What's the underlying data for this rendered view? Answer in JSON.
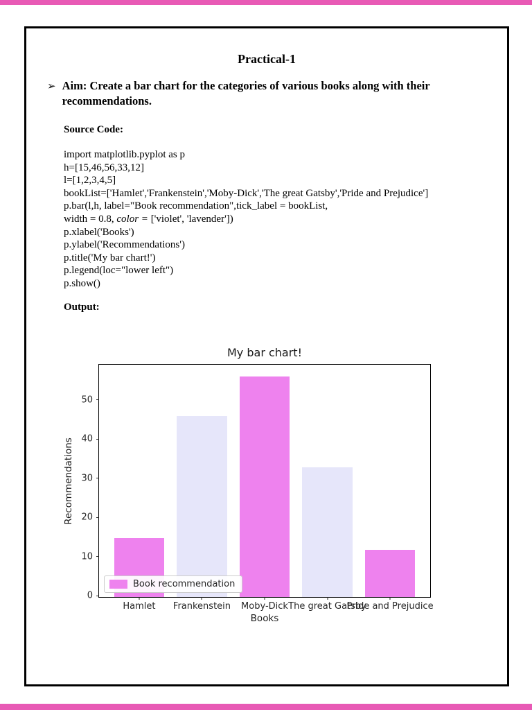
{
  "colors": {
    "page_border_pink": "#E85AB5",
    "frame_border": "#000000"
  },
  "document": {
    "title": "Practical-1",
    "bullet_glyph": "➢",
    "aim_text": "Aim: Create a bar chart for the categories of various books along with their recommendations.",
    "source_code_label": "Source Code:",
    "output_label": "Output:",
    "code_lines": [
      "import matplotlib.pyplot as p",
      "h=[15,46,56,33,12]",
      "l=[1,2,3,4,5]",
      "bookList=['Hamlet','Frankenstein','Moby-Dick','The great Gatsby','Pride and Prejudice']",
      "p.bar(l,h, label=\"Book recommendation\",tick_label = bookList,",
      "width = 0.8, color = ['violet', 'lavender'])",
      "p.xlabel('Books')",
      "p.ylabel('Recommendations')",
      "p.title('My bar chart!')",
      "p.legend(loc=\"lower left\")",
      "p.show()"
    ],
    "code_italic": {
      "line_index": 5,
      "text": "color ="
    }
  },
  "chart_data": {
    "type": "bar",
    "title": "My bar chart!",
    "xlabel": "Books",
    "ylabel": "Recommendations",
    "categories": [
      "Hamlet",
      "Frankenstein",
      "Moby-Dick",
      "The great Gatsby",
      "Pride and Prejudice"
    ],
    "values": [
      15,
      46,
      56,
      33,
      12
    ],
    "bar_colors": [
      "#EE82EE",
      "#E6E6FA",
      "#EE82EE",
      "#E6E6FA",
      "#EE82EE"
    ],
    "bar_width": 0.8,
    "yticks": [
      0,
      10,
      20,
      30,
      40,
      50
    ],
    "ylim": [
      0,
      59
    ],
    "grid": false,
    "legend": {
      "label": "Book recommendation",
      "position": "lower left",
      "swatch_color": "#EE82EE"
    }
  }
}
